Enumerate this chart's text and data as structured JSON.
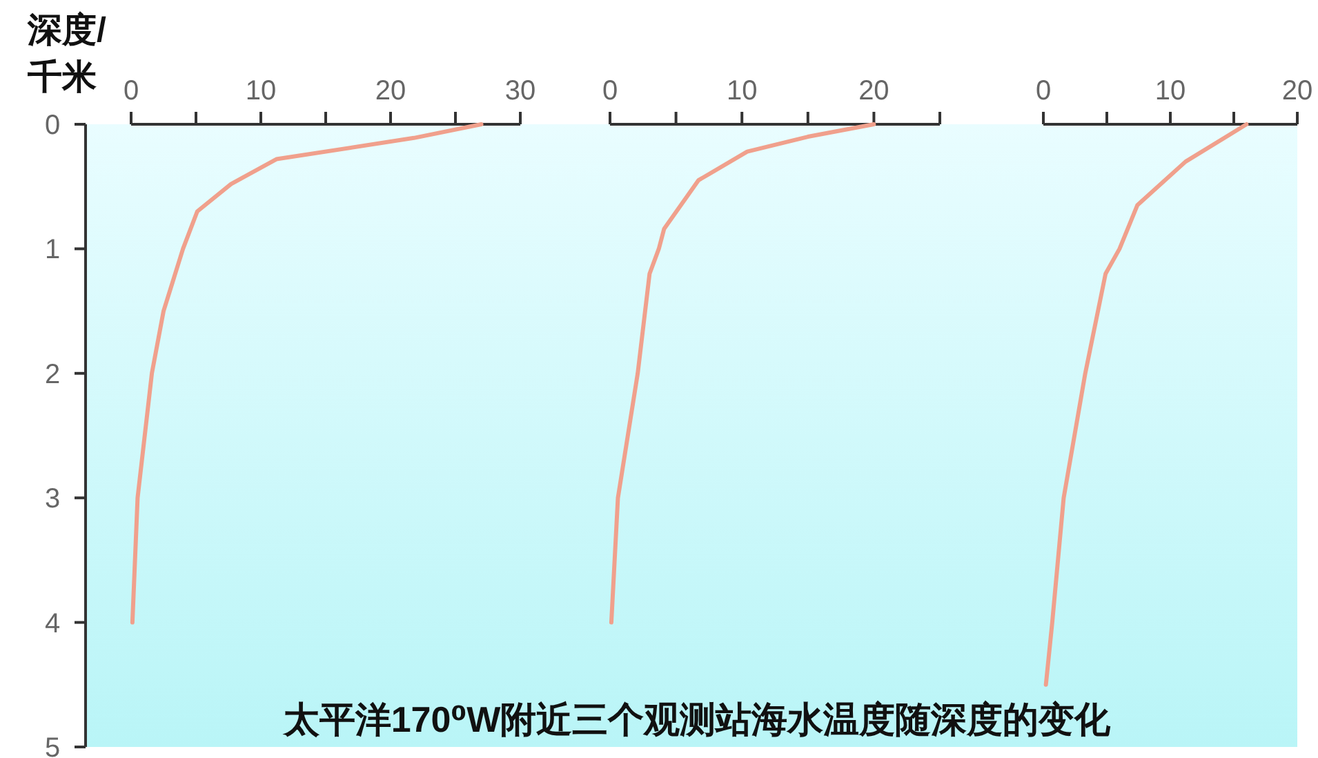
{
  "chart_data": [
    {
      "type": "line",
      "orientation": "horizontal",
      "title": "太平洋170⁰W附近三个观测站海水温度随深度的变化",
      "ylabel": "深度/千米",
      "xlim": [
        0,
        30
      ],
      "xticks": [
        0,
        {
          "value": 5,
          "label": null
        },
        10,
        {
          "value": 15,
          "label": null
        },
        20,
        {
          "value": 25,
          "label": null
        },
        30
      ],
      "ylim": [
        5,
        0
      ],
      "yticks": [
        0,
        1,
        2,
        3,
        4,
        5
      ],
      "series": [
        {
          "color": "#f0a08c",
          "x": [
            0,
            0.11,
            0.28,
            0.48,
            0.7,
            1.0,
            1.5,
            2.0,
            3.0,
            4.0
          ],
          "values": [
            27,
            21.8,
            11.2,
            7.7,
            5.1,
            4,
            2.5,
            1.6,
            0.5,
            0.1
          ]
        }
      ]
    },
    {
      "type": "line",
      "orientation": "horizontal",
      "tick_labels": "x",
      "xlim": [
        0,
        25
      ],
      "xticks": [
        0,
        {
          "value": 5,
          "label": null
        },
        10,
        {
          "value": 15,
          "label": null
        },
        20,
        {
          "value": 25,
          "label": null
        }
      ],
      "ylim": [
        5,
        0
      ],
      "series": [
        {
          "color": "#f0a08c",
          "x": [
            0,
            0.1,
            0.22,
            0.45,
            0.84,
            1.0,
            1.2,
            2.0,
            3.0,
            4.0
          ],
          "values": [
            20,
            15,
            10.4,
            6.7,
            4.1,
            3.7,
            3,
            2.1,
            0.6,
            0.1
          ]
        }
      ]
    },
    {
      "type": "line",
      "orientation": "horizontal",
      "tick_labels": "x",
      "xlim": [
        0,
        20
      ],
      "xticks": [
        0,
        {
          "value": 5,
          "label": null
        },
        10,
        {
          "value": 15,
          "label": null
        },
        20
      ],
      "ylim": [
        5,
        0
      ],
      "series": [
        {
          "color": "#f0a08c",
          "x": [
            0,
            0.3,
            0.65,
            1.0,
            1.2,
            2.0,
            3.0,
            4.0,
            4.5
          ],
          "values": [
            16,
            11.2,
            7.4,
            6,
            4.9,
            3.3,
            1.6,
            0.7,
            0.2
          ]
        }
      ]
    }
  ]
}
